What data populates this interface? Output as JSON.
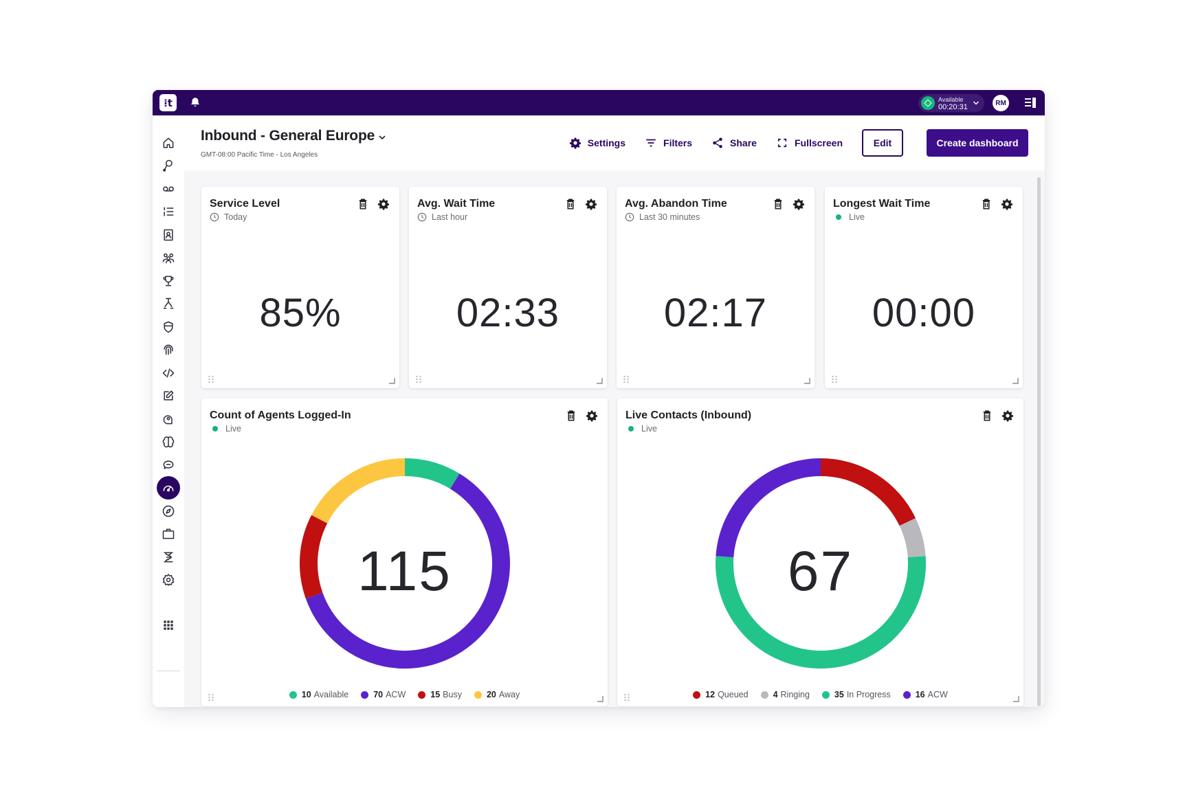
{
  "app": {
    "logo_text": "⁞t",
    "status": {
      "label": "Available",
      "time": "00:20:31",
      "color": "#17b67c"
    },
    "avatar_initials": "RM"
  },
  "header": {
    "title": "Inbound - General Europe",
    "subtitle": "GMT-08:00 Pacific Time - Los Angeles",
    "actions": {
      "settings": "Settings",
      "filters": "Filters",
      "share": "Share",
      "fullscreen": "Fullscreen",
      "edit": "Edit",
      "create": "Create dashboard"
    }
  },
  "sidebar": {
    "items": [
      "home-icon",
      "journey-icon",
      "voicemail-icon",
      "list-icon",
      "contacts-icon",
      "team-icon",
      "trophy-icon",
      "flow-icon",
      "shield-icon",
      "fingerprint-icon",
      "code-icon",
      "edit-icon",
      "ai-icon",
      "brain-icon",
      "chat-icon",
      "dashboard-icon",
      "compass-icon",
      "briefcase-icon",
      "dna-icon",
      "settings-icon",
      "apps-grid-icon"
    ],
    "active": "dashboard-icon",
    "accent": "#2a0660"
  },
  "widgets": {
    "service_level": {
      "title": "Service Level",
      "period": "Today",
      "value": "85%"
    },
    "avg_wait": {
      "title": "Avg. Wait Time",
      "period": "Last hour",
      "value": "02:33"
    },
    "avg_abandon": {
      "title": "Avg. Abandon Time",
      "period": "Last 30 minutes",
      "value": "02:17"
    },
    "longest_wait": {
      "title": "Longest Wait Time",
      "period": "Live",
      "value": "00:00"
    },
    "agents": {
      "title": "Count of Agents Logged-In",
      "period": "Live",
      "total": "115",
      "legend": [
        {
          "count": "10",
          "label": "Available",
          "color": "#22c48a"
        },
        {
          "count": "70",
          "label": "ACW",
          "color": "#5a22cc"
        },
        {
          "count": "15",
          "label": "Busy",
          "color": "#c01010"
        },
        {
          "count": "20",
          "label": "Away",
          "color": "#fdc640"
        }
      ]
    },
    "contacts": {
      "title": "Live Contacts (Inbound)",
      "period": "Live",
      "total": "67",
      "legend": [
        {
          "count": "12",
          "label": "Queued",
          "color": "#c01010"
        },
        {
          "count": "4",
          "label": "Ringing",
          "color": "#b9b9bd"
        },
        {
          "count": "35",
          "label": "In Progress",
          "color": "#22c48a"
        },
        {
          "count": "16",
          "label": "ACW",
          "color": "#5a22cc"
        }
      ]
    }
  },
  "chart_data": [
    {
      "type": "pie",
      "categories": [
        "Available",
        "ACW",
        "Busy",
        "Away"
      ],
      "values": [
        10,
        70,
        15,
        20
      ],
      "colors": [
        "#22c48a",
        "#5a22cc",
        "#c01010",
        "#fdc640"
      ],
      "title": "Count of Agents Logged-In"
    },
    {
      "type": "pie",
      "categories": [
        "Queued",
        "Ringing",
        "In Progress",
        "ACW"
      ],
      "values": [
        12,
        4,
        35,
        16
      ],
      "colors": [
        "#c01010",
        "#b9b9bd",
        "#22c48a",
        "#5a22cc"
      ],
      "title": "Live Contacts (Inbound)"
    }
  ]
}
